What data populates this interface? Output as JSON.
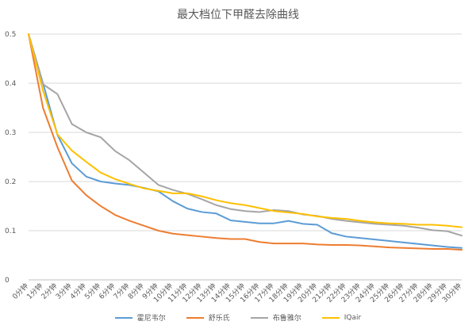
{
  "chart_data": {
    "type": "line",
    "title": "最大档位下甲醛去除曲线",
    "x": [
      "0分钟",
      "1分钟",
      "2分钟",
      "3分钟",
      "4分钟",
      "5分钟",
      "6分钟",
      "7分钟",
      "8分钟",
      "9分钟",
      "10分钟",
      "11分钟",
      "12分钟",
      "13分钟",
      "14分钟",
      "15分钟",
      "16分钟",
      "17分钟",
      "18分钟",
      "19分钟",
      "20分钟",
      "21分钟",
      "22分钟",
      "23分钟",
      "24分钟",
      "25分钟",
      "26分钟",
      "27分钟",
      "28分钟",
      "29分钟",
      "30分钟"
    ],
    "ylim": [
      0,
      0.5
    ],
    "yticks": [
      "0",
      "0.1",
      "0.2",
      "0.3",
      "0.4",
      "0.5"
    ],
    "ytick_values": [
      0,
      0.1,
      0.2,
      0.3,
      0.4,
      0.5
    ],
    "grid": true,
    "legend_position": "bottom",
    "series": [
      {
        "name": "霍尼韦尔",
        "color": "#5b9bd5",
        "values": [
          0.5,
          0.4,
          0.295,
          0.237,
          0.21,
          0.2,
          0.196,
          0.193,
          0.187,
          0.18,
          0.16,
          0.145,
          0.138,
          0.135,
          0.121,
          0.118,
          0.115,
          0.115,
          0.12,
          0.114,
          0.112,
          0.095,
          0.088,
          0.085,
          0.082,
          0.079,
          0.076,
          0.073,
          0.07,
          0.067,
          0.065
        ]
      },
      {
        "name": "舒乐氏",
        "color": "#ed7d31",
        "values": [
          0.5,
          0.35,
          0.27,
          0.202,
          0.172,
          0.15,
          0.132,
          0.12,
          0.11,
          0.1,
          0.094,
          0.091,
          0.088,
          0.085,
          0.083,
          0.083,
          0.077,
          0.074,
          0.074,
          0.074,
          0.072,
          0.071,
          0.071,
          0.07,
          0.068,
          0.066,
          0.065,
          0.064,
          0.063,
          0.063,
          0.061
        ]
      },
      {
        "name": "布鲁雅尔",
        "color": "#a5a5a5",
        "values": [
          0.5,
          0.398,
          0.378,
          0.317,
          0.3,
          0.29,
          0.262,
          0.243,
          0.218,
          0.193,
          0.183,
          0.175,
          0.164,
          0.152,
          0.144,
          0.14,
          0.138,
          0.142,
          0.14,
          0.133,
          0.13,
          0.124,
          0.12,
          0.117,
          0.114,
          0.112,
          0.11,
          0.106,
          0.101,
          0.099,
          0.09
        ]
      },
      {
        "name": "IQair",
        "color": "#ffc000",
        "values": [
          0.5,
          0.385,
          0.296,
          0.263,
          0.24,
          0.218,
          0.205,
          0.195,
          0.186,
          0.181,
          0.176,
          0.176,
          0.17,
          0.162,
          0.156,
          0.152,
          0.146,
          0.14,
          0.137,
          0.134,
          0.129,
          0.126,
          0.124,
          0.12,
          0.117,
          0.115,
          0.114,
          0.112,
          0.112,
          0.11,
          0.107
        ]
      }
    ]
  }
}
